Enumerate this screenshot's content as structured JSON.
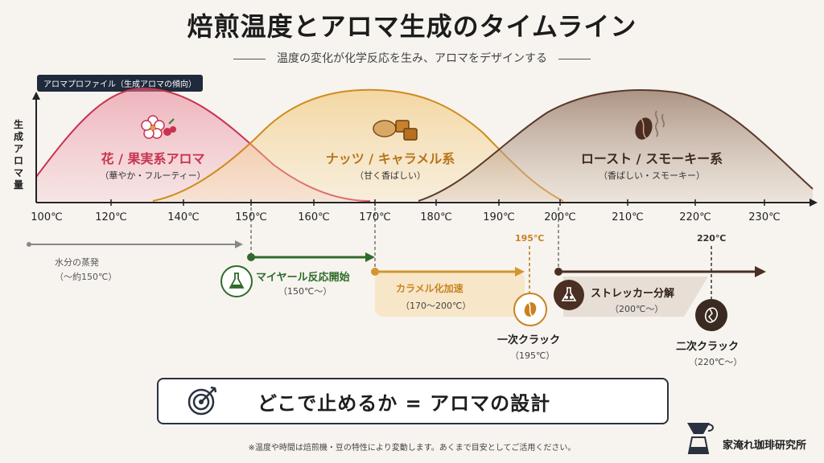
{
  "title": "焙煎温度とアロマ生成のタイムライン",
  "subtitle": "温度の変化が化学反応を生み、アロマをデザインする",
  "profile_tag": "アロマプロファイル（生成アロマの傾向）",
  "y_axis_label": "生成アロマ量",
  "axis": {
    "ticks": [
      "100℃",
      "120℃",
      "140℃",
      "150℃",
      "160℃",
      "170℃",
      "180℃",
      "190℃",
      "200℃",
      "210℃",
      "220℃",
      "230℃"
    ]
  },
  "curves": [
    {
      "title": "花 / 果実系アロマ",
      "subtitle": "（華やか・フルーティー）",
      "color": "#c8334f",
      "icon": "flower-berry-icon"
    },
    {
      "title": "ナッツ / キャラメル系",
      "subtitle": "（甘く香ばしい）",
      "color": "#b8741a",
      "icon": "nuts-caramel-icon"
    },
    {
      "title": "ロースト / スモーキー系",
      "subtitle": "（香ばしい・スモーキー）",
      "color": "#3f2a20",
      "icon": "coffee-bean-smoke-icon"
    }
  ],
  "events": {
    "evaporation": {
      "label": "水分の蒸発",
      "sub": "（～約150℃）"
    },
    "maillard": {
      "label": "マイヤール反応開始",
      "sub": "（150℃～）",
      "color": "#2f6b2a"
    },
    "caramelization": {
      "label": "カラメル化加速",
      "sub": "（170～200℃）",
      "color": "#c98220"
    },
    "strecker": {
      "label": "ストレッカー分解",
      "sub": "（200℃～）",
      "color": "#4a2f22"
    },
    "first_crack": {
      "label": "一次クラック",
      "sub": "（195℃）",
      "marker": "195℃"
    },
    "second_crack": {
      "label": "二次クラック",
      "sub": "（220℃～）",
      "marker": "220℃"
    }
  },
  "banner": "どこで止めるか = アロマの設計",
  "footnote": "※温度や時間は焙煎機・豆の特性により変動します。あくまで目安としてご活用ください。",
  "brand": "家淹れ珈琲研究所"
}
